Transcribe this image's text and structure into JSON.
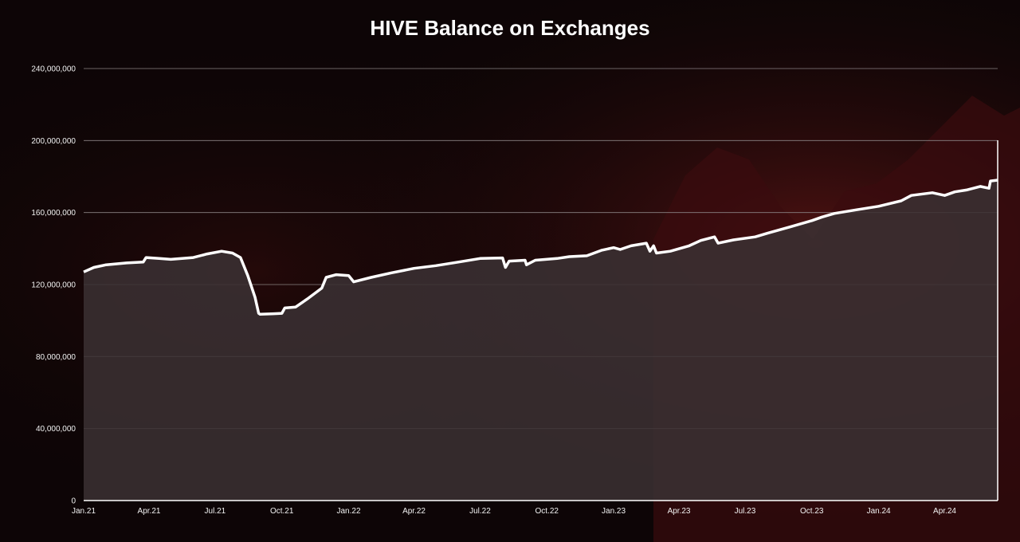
{
  "chart_data": {
    "type": "area",
    "title": "HIVE Balance on Exchanges",
    "xlabel": "",
    "ylabel": "",
    "x_ticks": [
      "Jan.21",
      "Apr.21",
      "Jul.21",
      "Oct.21",
      "Jan.22",
      "Apr.22",
      "Jul.22",
      "Oct.22",
      "Jan.23",
      "Apr.23",
      "Jul.23",
      "Oct.23",
      "Jan.24",
      "Apr.24"
    ],
    "y_ticks": [
      "0",
      "40,000,000",
      "80,000,000",
      "120,000,000",
      "160,000,000",
      "200,000,000",
      "240,000,000"
    ],
    "ylim": [
      0,
      240000000
    ],
    "xlim": [
      "2021-01-01",
      "2024-06-13"
    ],
    "grid": true,
    "series": [
      {
        "name": "",
        "color": "#ffffff",
        "points": [
          [
            "2021-01-01",
            127000000
          ],
          [
            "2021-01-15",
            129500000
          ],
          [
            "2021-02-01",
            131000000
          ],
          [
            "2021-03-01",
            132000000
          ],
          [
            "2021-03-24",
            132500000
          ],
          [
            "2021-03-28",
            135000000
          ],
          [
            "2021-04-15",
            134500000
          ],
          [
            "2021-05-01",
            134000000
          ],
          [
            "2021-06-01",
            135000000
          ],
          [
            "2021-06-20",
            137000000
          ],
          [
            "2021-07-10",
            138500000
          ],
          [
            "2021-07-25",
            137500000
          ],
          [
            "2021-08-05",
            135000000
          ],
          [
            "2021-08-15",
            125000000
          ],
          [
            "2021-08-25",
            113000000
          ],
          [
            "2021-08-30",
            104000000
          ],
          [
            "2021-09-01",
            103500000
          ],
          [
            "2021-09-20",
            103800000
          ],
          [
            "2021-10-01",
            104000000
          ],
          [
            "2021-10-05",
            107000000
          ],
          [
            "2021-10-20",
            107500000
          ],
          [
            "2021-11-05",
            112000000
          ],
          [
            "2021-11-25",
            118000000
          ],
          [
            "2021-12-01",
            124000000
          ],
          [
            "2021-12-15",
            125500000
          ],
          [
            "2022-01-01",
            125000000
          ],
          [
            "2022-01-08",
            121500000
          ],
          [
            "2022-02-01",
            124000000
          ],
          [
            "2022-03-01",
            126500000
          ],
          [
            "2022-04-01",
            129000000
          ],
          [
            "2022-05-01",
            130500000
          ],
          [
            "2022-06-01",
            132500000
          ],
          [
            "2022-07-01",
            134500000
          ],
          [
            "2022-08-01",
            134800000
          ],
          [
            "2022-08-05",
            129500000
          ],
          [
            "2022-08-10",
            133000000
          ],
          [
            "2022-09-01",
            133500000
          ],
          [
            "2022-09-03",
            131000000
          ],
          [
            "2022-09-15",
            133500000
          ],
          [
            "2022-10-15",
            134500000
          ],
          [
            "2022-11-01",
            135500000
          ],
          [
            "2022-11-25",
            136000000
          ],
          [
            "2022-12-15",
            139000000
          ],
          [
            "2023-01-01",
            140500000
          ],
          [
            "2023-01-10",
            139500000
          ],
          [
            "2023-01-25",
            141500000
          ],
          [
            "2023-02-15",
            143000000
          ],
          [
            "2023-02-20",
            138500000
          ],
          [
            "2023-02-25",
            141500000
          ],
          [
            "2023-03-01",
            137500000
          ],
          [
            "2023-03-20",
            138500000
          ],
          [
            "2023-04-15",
            141500000
          ],
          [
            "2023-05-01",
            144500000
          ],
          [
            "2023-05-20",
            146500000
          ],
          [
            "2023-05-25",
            143000000
          ],
          [
            "2023-06-15",
            144800000
          ],
          [
            "2023-07-15",
            146500000
          ],
          [
            "2023-08-01",
            148500000
          ],
          [
            "2023-09-01",
            152000000
          ],
          [
            "2023-10-01",
            155500000
          ],
          [
            "2023-10-15",
            157500000
          ],
          [
            "2023-11-01",
            159500000
          ],
          [
            "2023-12-01",
            161500000
          ],
          [
            "2024-01-01",
            163500000
          ],
          [
            "2024-02-01",
            166500000
          ],
          [
            "2024-02-15",
            169500000
          ],
          [
            "2024-03-15",
            171000000
          ],
          [
            "2024-04-01",
            169500000
          ],
          [
            "2024-04-15",
            171500000
          ],
          [
            "2024-05-01",
            172500000
          ],
          [
            "2024-05-20",
            174500000
          ],
          [
            "2024-06-01",
            173500000
          ],
          [
            "2024-06-03",
            177500000
          ],
          [
            "2024-06-13",
            178000000
          ]
        ]
      }
    ]
  }
}
